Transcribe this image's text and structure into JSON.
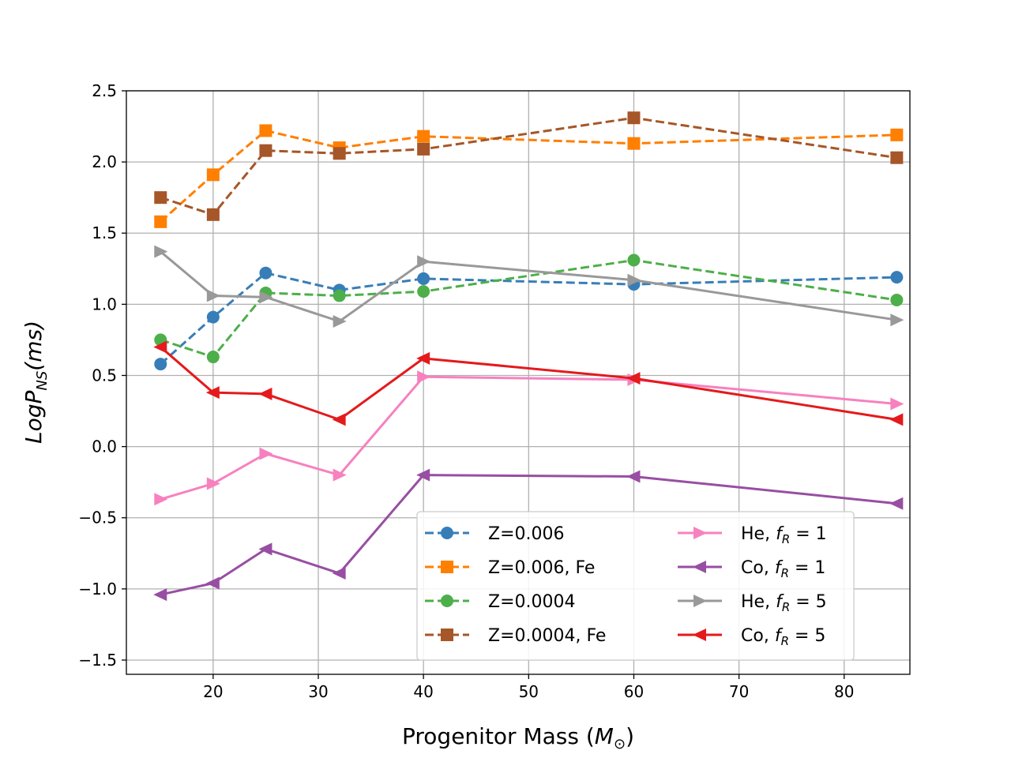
{
  "chart_data": {
    "type": "line",
    "title": "",
    "xlabel": "Progenitor Mass (M☉)",
    "ylabel": "LogP_NS(ms)",
    "xlim": [
      11.75,
      86.25
    ],
    "ylim": [
      -1.6,
      2.5
    ],
    "xticks": [
      20,
      30,
      40,
      50,
      60,
      70,
      80
    ],
    "yticks": [
      -1.5,
      -1.0,
      -0.5,
      0.0,
      0.5,
      1.0,
      1.5,
      2.0,
      2.5
    ],
    "xtick_labels": [
      "20",
      "30",
      "40",
      "50",
      "60",
      "70",
      "80"
    ],
    "ytick_labels": [
      "−1.5",
      "−1.0",
      "−0.5",
      "0.0",
      "0.5",
      "1.0",
      "1.5",
      "2.0",
      "2.5"
    ],
    "grid": true,
    "legend_position": "lower-right",
    "x": [
      15,
      20,
      25,
      32,
      40,
      60,
      85
    ],
    "series": [
      {
        "name": "Z=0.006",
        "color": "#377eb8",
        "dash": "dashed",
        "marker": "circle",
        "values": [
          0.58,
          0.91,
          1.22,
          1.1,
          1.18,
          1.14,
          1.19
        ]
      },
      {
        "name": "Z=0.006, Fe",
        "color": "#ff7f00",
        "dash": "dashed",
        "marker": "square",
        "values": [
          1.58,
          1.91,
          2.22,
          2.1,
          2.18,
          2.13,
          2.19
        ]
      },
      {
        "name": "Z=0.0004",
        "color": "#4daf4a",
        "dash": "dashed",
        "marker": "circle",
        "values": [
          0.75,
          0.63,
          1.08,
          1.06,
          1.09,
          1.31,
          1.03
        ]
      },
      {
        "name": "Z=0.0004, Fe",
        "color": "#a65628",
        "dash": "dashed",
        "marker": "square",
        "values": [
          1.75,
          1.63,
          2.08,
          2.06,
          2.09,
          2.31,
          2.03
        ]
      },
      {
        "name": "He, f_R = 1",
        "color": "#f781bf",
        "dash": "solid",
        "marker": "triangle-right",
        "values": [
          -0.37,
          -0.26,
          -0.05,
          -0.2,
          0.49,
          0.47,
          0.3
        ]
      },
      {
        "name": "Co, f_R = 1",
        "color": "#984ea3",
        "dash": "solid",
        "marker": "triangle-left",
        "values": [
          -1.04,
          -0.96,
          -0.72,
          -0.89,
          -0.2,
          -0.21,
          -0.4
        ]
      },
      {
        "name": "He, f_R = 5",
        "color": "#999999",
        "dash": "solid",
        "marker": "triangle-right",
        "values": [
          1.37,
          1.06,
          1.05,
          0.88,
          1.3,
          1.17,
          0.89
        ]
      },
      {
        "name": "Co, f_R = 5",
        "color": "#e41a1c",
        "dash": "solid",
        "marker": "triangle-left",
        "values": [
          0.7,
          0.38,
          0.37,
          0.19,
          0.62,
          0.48,
          0.19
        ]
      }
    ],
    "legend": [
      {
        "prefix": "Z=0.006",
        "sub_label": null,
        "suffix": null
      },
      {
        "prefix": "Z=0.006, Fe",
        "sub_label": null,
        "suffix": null
      },
      {
        "prefix": "Z=0.0004",
        "sub_label": null,
        "suffix": null
      },
      {
        "prefix": "Z=0.0004, Fe",
        "sub_label": null,
        "suffix": null
      },
      {
        "prefix": "He, ",
        "sub_label": "R",
        "suffix": " = 1"
      },
      {
        "prefix": "Co, ",
        "sub_label": "R",
        "suffix": " = 1"
      },
      {
        "prefix": "He, ",
        "sub_label": "R",
        "suffix": " = 5"
      },
      {
        "prefix": "Co, ",
        "sub_label": "R",
        "suffix": " = 5"
      }
    ]
  },
  "labels": {
    "x_axis": {
      "text": "Progenitor Mass (",
      "symbol": "M",
      "sub": "⊙",
      "close": ")"
    },
    "y_axis": {
      "text": "LogP",
      "sub": "NS",
      "rest": "(ms)"
    },
    "legend_f": "f"
  }
}
